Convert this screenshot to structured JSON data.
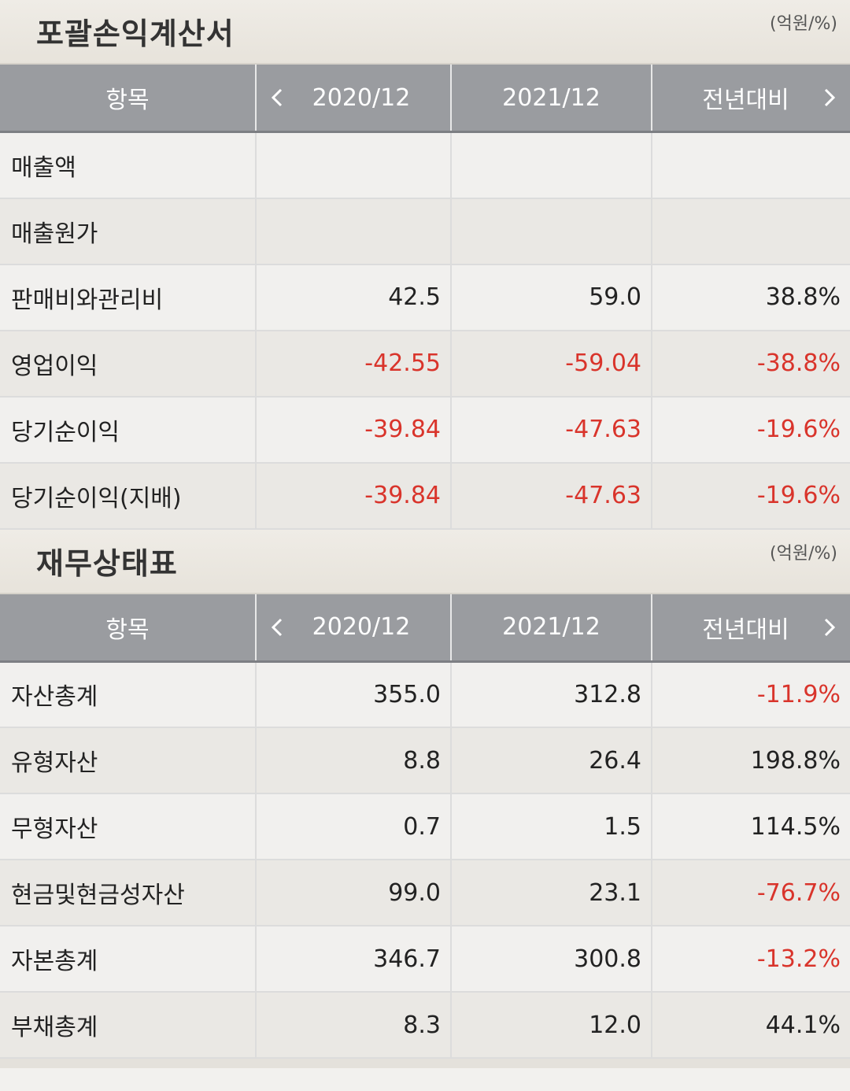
{
  "colors": {
    "header_bg": "#9a9ca0",
    "negative": "#d9342b",
    "text": "#222222"
  },
  "income_statement": {
    "title": "포괄손익계산서",
    "unit": "(억원/%)",
    "headers": [
      "항목",
      "2020/12",
      "2021/12",
      "전년대비"
    ],
    "rows": [
      {
        "label": "매출액",
        "v2020": "",
        "v2021": "",
        "yoy": ""
      },
      {
        "label": "매출원가",
        "v2020": "",
        "v2021": "",
        "yoy": ""
      },
      {
        "label": "판매비와관리비",
        "v2020": "42.5",
        "v2021": "59.0",
        "yoy": "38.8%"
      },
      {
        "label": "영업이익",
        "v2020": "-42.55",
        "v2021": "-59.04",
        "yoy": "-38.8%"
      },
      {
        "label": "당기순이익",
        "v2020": "-39.84",
        "v2021": "-47.63",
        "yoy": "-19.6%"
      },
      {
        "label": "당기순이익(지배)",
        "v2020": "-39.84",
        "v2021": "-47.63",
        "yoy": "-19.6%"
      }
    ]
  },
  "balance_sheet": {
    "title": "재무상태표",
    "unit": "(억원/%)",
    "headers": [
      "항목",
      "2020/12",
      "2021/12",
      "전년대비"
    ],
    "rows": [
      {
        "label": "자산총계",
        "v2020": "355.0",
        "v2021": "312.8",
        "yoy": "-11.9%"
      },
      {
        "label": "유형자산",
        "v2020": "8.8",
        "v2021": "26.4",
        "yoy": "198.8%"
      },
      {
        "label": "무형자산",
        "v2020": "0.7",
        "v2021": "1.5",
        "yoy": "114.5%"
      },
      {
        "label": "현금및현금성자산",
        "v2020": "99.0",
        "v2021": "23.1",
        "yoy": "-76.7%"
      },
      {
        "label": "자본총계",
        "v2020": "346.7",
        "v2021": "300.8",
        "yoy": "-13.2%"
      },
      {
        "label": "부채총계",
        "v2020": "8.3",
        "v2021": "12.0",
        "yoy": "44.1%"
      }
    ]
  },
  "icons": {
    "prev": "chevron-left-icon",
    "next": "chevron-right-icon"
  }
}
